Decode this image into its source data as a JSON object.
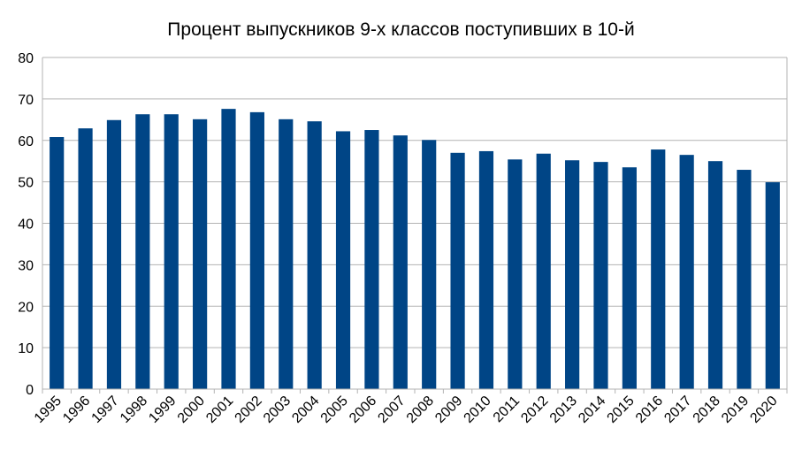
{
  "chart_data": {
    "type": "bar",
    "title": "Процент выпускников 9-х классов поступивших в 10-й",
    "xlabel": "",
    "ylabel": "",
    "categories": [
      "1995",
      "1996",
      "1997",
      "1998",
      "1999",
      "2000",
      "2001",
      "2002",
      "2003",
      "2004",
      "2005",
      "2006",
      "2007",
      "2008",
      "2009",
      "2010",
      "2011",
      "2012",
      "2013",
      "2014",
      "2015",
      "2016",
      "2017",
      "2018",
      "2019",
      "2020"
    ],
    "series": [
      {
        "values": [
          60.8,
          62.9,
          64.9,
          66.3,
          66.3,
          65.1,
          67.6,
          66.8,
          65.1,
          64.6,
          62.2,
          62.5,
          61.2,
          60.1,
          57.0,
          57.4,
          55.4,
          56.8,
          55.2,
          54.8,
          53.5,
          57.8,
          56.5,
          55.0,
          52.9,
          49.9
        ],
        "color": "#004586"
      }
    ],
    "ylim": [
      0,
      80
    ],
    "yticks": [
      0,
      10,
      20,
      30,
      40,
      50,
      60,
      70,
      80
    ],
    "grid": true,
    "gridColor": "#b3b3b3",
    "legend": "none"
  }
}
